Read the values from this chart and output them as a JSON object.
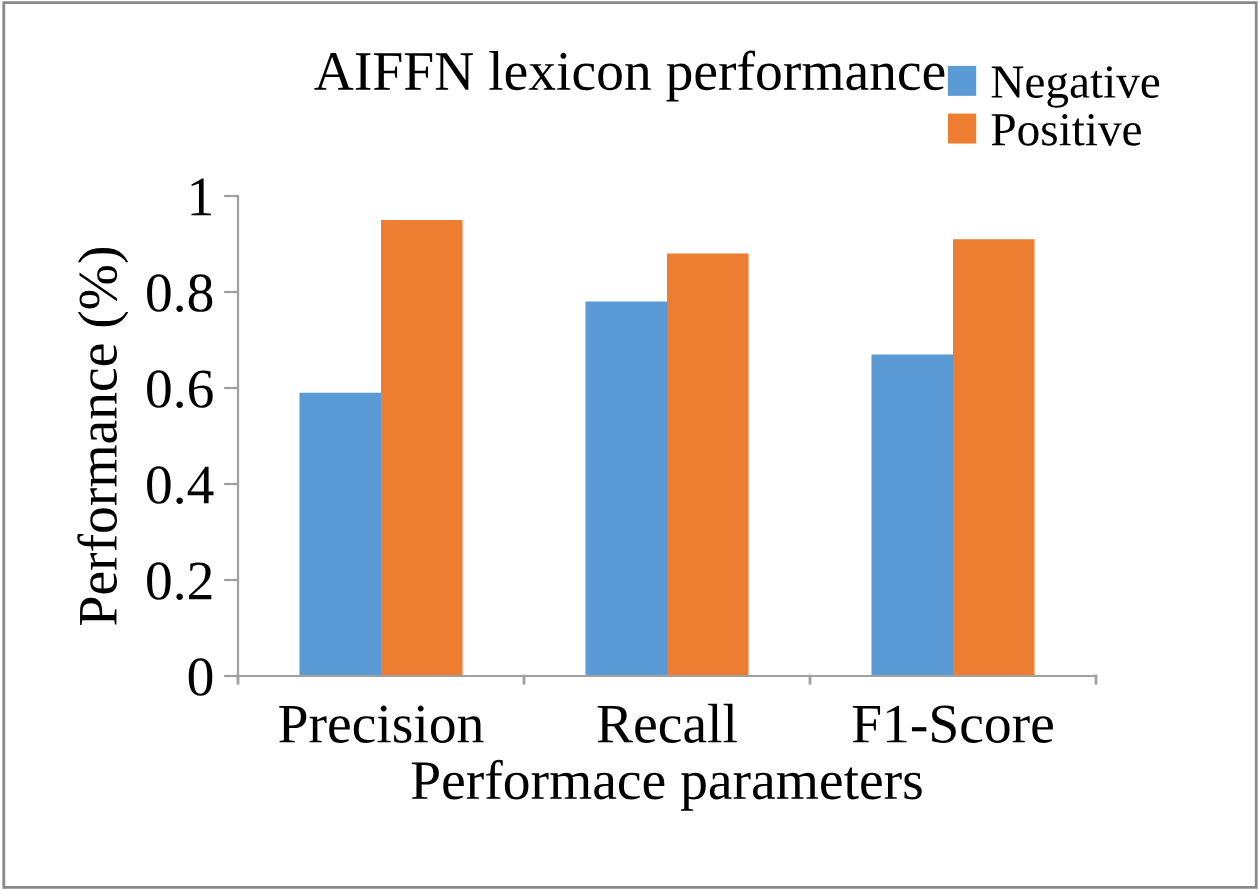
{
  "chart_data": {
    "type": "bar",
    "title": "AIFFN lexicon performance",
    "xlabel": "Performace parameters",
    "ylabel": "Performance (%)",
    "categories": [
      "Precision",
      "Recall",
      "F1-Score"
    ],
    "series": [
      {
        "name": "Negative",
        "color": "#5b9bd5",
        "values": [
          0.59,
          0.78,
          0.67
        ]
      },
      {
        "name": "Positive",
        "color": "#ed7d31",
        "values": [
          0.95,
          0.88,
          0.91
        ]
      }
    ],
    "ylim": [
      0,
      1
    ],
    "yticks": [
      0,
      0.2,
      0.4,
      0.6,
      0.8,
      1
    ],
    "grid": false,
    "legend": "top right"
  }
}
